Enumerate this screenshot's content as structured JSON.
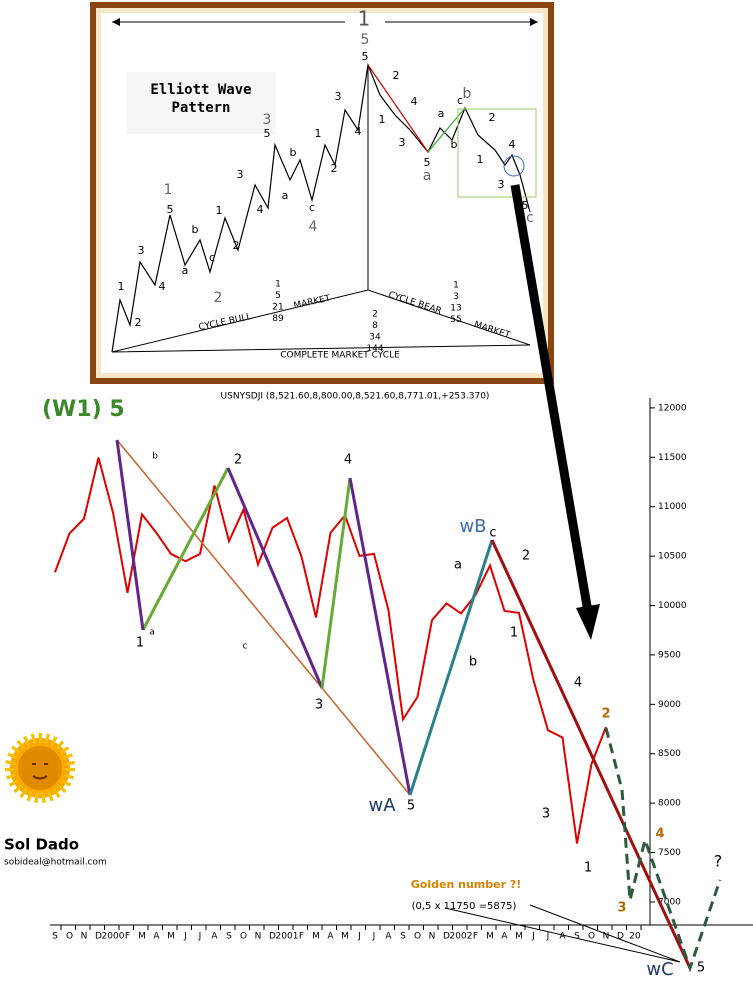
{
  "inset": {
    "degree": "1",
    "title_line1": "Elliott Wave",
    "title_line2": "Pattern",
    "wave_labels": [
      "1",
      "2",
      "3",
      "4",
      "5",
      "1",
      "a",
      "b",
      "c",
      "2",
      "1",
      "2",
      "3",
      "4",
      "5",
      "3",
      "a",
      "b",
      "c",
      "4",
      "1",
      "2",
      "3",
      "4",
      "5",
      "5",
      "1",
      "2",
      "3",
      "4",
      "5",
      "a",
      "a",
      "b",
      "c",
      "b",
      "1",
      "2",
      "3",
      "4",
      "5",
      "c"
    ],
    "cycle_bull": "CYCLE BULL",
    "market_1": "MARKET",
    "cycle_bear": "CYCLE BEAR",
    "market_2": "MARKET",
    "complete": "COMPLETE MARKET CYCLE",
    "fib_bull": [
      "1",
      "5",
      "21",
      "89"
    ],
    "fib_total": [
      "2",
      "8",
      "34",
      "144"
    ],
    "fib_bear": [
      "1",
      "3",
      "13",
      "55"
    ]
  },
  "chart_data": {
    "type": "line",
    "title": "USNYSDJI (8,521.60,8,800.00,8,521.60,8,771.01,+253.370)",
    "categories": [
      "S",
      "O",
      "N",
      "D",
      "2000",
      "F",
      "M",
      "A",
      "M",
      "J",
      "J",
      "A",
      "S",
      "O",
      "N",
      "D",
      "2001",
      "F",
      "M",
      "A",
      "M",
      "J",
      "J",
      "A",
      "S",
      "O",
      "N",
      "D",
      "2002",
      "F",
      "M",
      "A",
      "M",
      "J",
      "J",
      "A",
      "S",
      "O",
      "N",
      "D",
      "20"
    ],
    "values": [
      10337,
      10730,
      10878,
      11497,
      10940,
      10128,
      10922,
      10734,
      10522,
      10448,
      10522,
      11215,
      10651,
      10971,
      10415,
      10787,
      10887,
      10495,
      9879,
      10735,
      10912,
      10502,
      10523,
      9950,
      8848,
      9075,
      9852,
      10021,
      9920,
      10106,
      10404,
      9946,
      9925,
      9243,
      8737,
      8664,
      7592,
      8397,
      8771,
      null,
      null
    ],
    "color": "#e00000",
    "ylim": [
      6767,
      12100
    ],
    "yticks": [
      7000,
      7500,
      8000,
      8500,
      9000,
      9500,
      10000,
      10500,
      11000,
      11500,
      12000
    ],
    "annotations": [
      "(W1) 5",
      "1",
      "a",
      "b",
      "c",
      "2",
      "3",
      "4",
      "5",
      "wA",
      "wB",
      "c",
      "a",
      "b",
      "1",
      "2",
      "3",
      "4",
      "1",
      "2",
      "3",
      "4",
      "?",
      "wC",
      "5",
      "Golden number ?!",
      "(0,5 x 11750 =5875)"
    ],
    "author": "Sol Dado",
    "email": "sobideal@hotmail.com"
  }
}
